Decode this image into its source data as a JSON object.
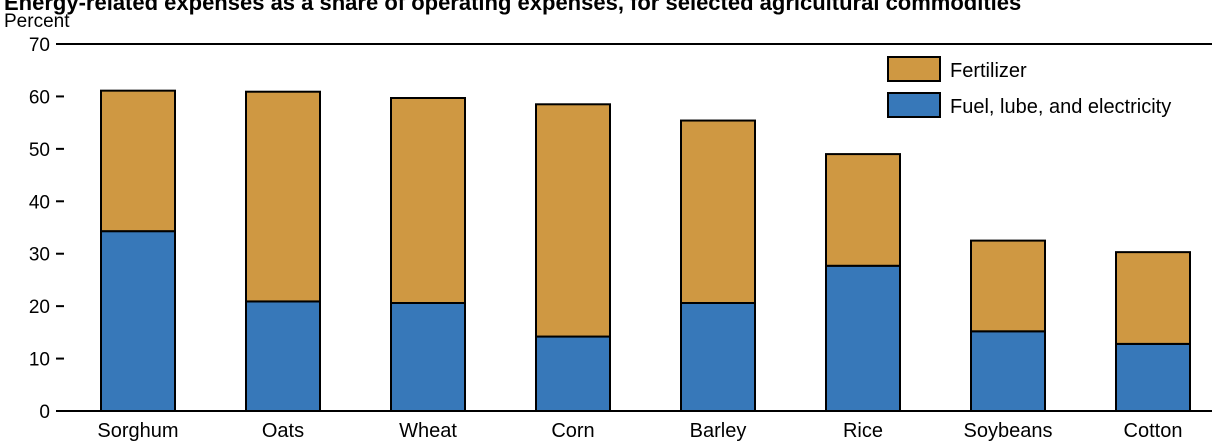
{
  "chart_data": {
    "type": "bar",
    "stacked": true,
    "title": "Energy-related expenses as a share of operating expenses, for selected agricultural commodities",
    "ylabel": "Percent",
    "xlabel": "",
    "ylim": [
      0,
      70
    ],
    "yticks": [
      0,
      10,
      20,
      30,
      40,
      50,
      60,
      70
    ],
    "grid": false,
    "legend_position": "top-right",
    "categories": [
      "Sorghum",
      "Oats",
      "Wheat",
      "Corn",
      "Barley",
      "Rice",
      "Soybeans",
      "Cotton"
    ],
    "series": [
      {
        "name": "Fuel, lube, and electricity",
        "color": "#3778b9",
        "values": [
          34.3,
          20.9,
          20.6,
          14.2,
          20.6,
          27.7,
          15.2,
          12.8
        ]
      },
      {
        "name": "Fertilizer",
        "color": "#cf9842",
        "values": [
          26.8,
          40.0,
          39.1,
          44.3,
          34.8,
          21.3,
          17.3,
          17.5
        ]
      }
    ]
  }
}
